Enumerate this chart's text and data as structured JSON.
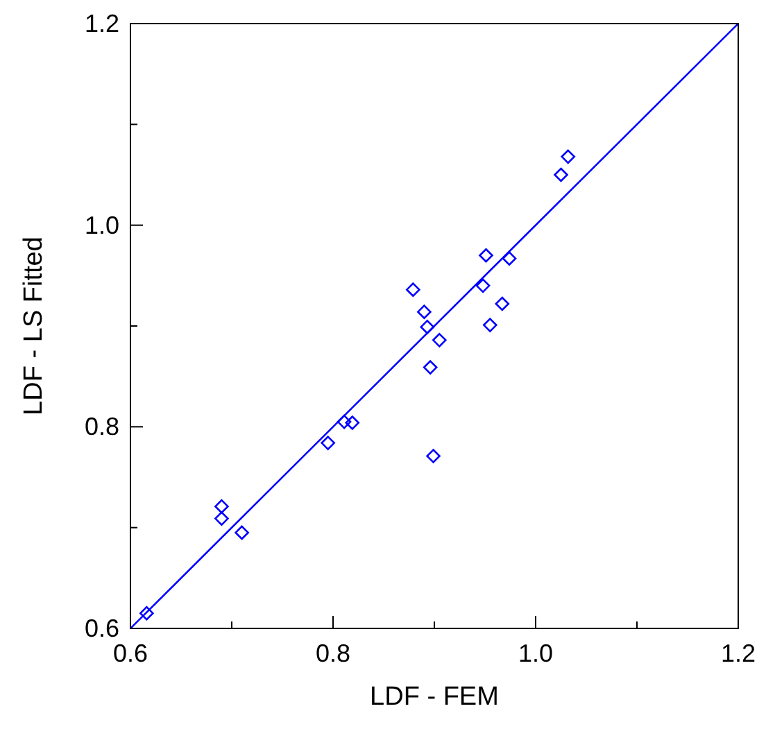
{
  "chart_data": {
    "type": "scatter",
    "xlabel": "LDF - FEM",
    "ylabel": "LDF - LS Fitted",
    "xlim": [
      0.6,
      1.2
    ],
    "ylim": [
      0.6,
      1.2
    ],
    "xticks": [
      0.6,
      {
        "value": 0.7,
        "label": null
      },
      0.8,
      {
        "value": 0.9,
        "label": null
      },
      {
        "value": 1,
        "label": "1.0"
      },
      {
        "value": 1.1,
        "label": null
      },
      1.2
    ],
    "yticks": [
      0.6,
      {
        "value": 0.7,
        "label": null
      },
      0.8,
      {
        "value": 0.9,
        "label": null
      },
      {
        "value": 1,
        "label": "1.0"
      },
      {
        "value": 1.1,
        "label": null
      },
      1.2
    ],
    "grid": false,
    "marker": "diamond",
    "series": [
      {
        "color": "#0000ff",
        "x": [
          0.616,
          0.69,
          0.69,
          0.71,
          0.795,
          0.811,
          0.819,
          0.879,
          0.89,
          0.893,
          0.896,
          0.899,
          0.905,
          0.948,
          0.951,
          0.955,
          0.967,
          0.974,
          1.025,
          1.032
        ],
        "values": [
          0.615,
          0.721,
          0.709,
          0.695,
          0.784,
          0.805,
          0.804,
          0.936,
          0.914,
          0.899,
          0.859,
          0.771,
          0.886,
          0.94,
          0.97,
          0.901,
          0.922,
          0.967,
          1.05,
          1.068
        ]
      },
      {
        "type": "line",
        "color": "#0000ff",
        "marker": "none",
        "x": [
          0.6,
          1.2
        ],
        "values": [
          0.6,
          1.2
        ]
      }
    ]
  }
}
